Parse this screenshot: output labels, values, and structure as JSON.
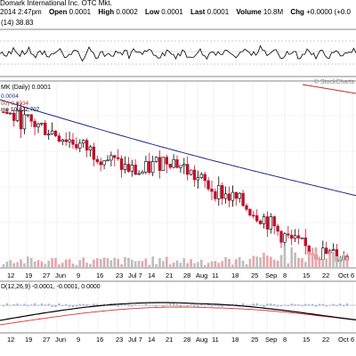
{
  "header": {
    "title": "Domark International Inc.  OTC Mkt.",
    "datetime": "2014 2:47pm",
    "open_label": "Open",
    "open_value": "0.0001",
    "high_label": "High",
    "high_value": "0.0002",
    "low_label": "Low",
    "low_value": "0.0001",
    "last_label": "Last",
    "last_value": "0.0001",
    "volume_label": "Volume",
    "volume_value": "10.8M",
    "chg_label": "Chg",
    "chg_value": "+0.0000 (+0.0"
  },
  "rsi_panel": {
    "label": "(14) 38.83"
  },
  "price_panel": {
    "label": "MK (Daily) 0.0001",
    "ma_label": "0.0004",
    "ema_label": "00) 0.0034",
    "volume_label": "me 10,822,707",
    "watermark": "© StockCharts"
  },
  "macd_panel": {
    "label": "D(12,26,9) -0.0001, -0.0001, 0.0000"
  },
  "x_axis_labels": [
    "12",
    "19",
    "27",
    "Jun",
    "9",
    "16",
    "23",
    "Jul 7",
    "14",
    "21",
    "28",
    "Aug",
    "11",
    "18",
    "25",
    "Sep",
    "8",
    "15",
    "22",
    "Oct",
    "6"
  ],
  "chart_data": {
    "type": "candlestick",
    "title": "Domark International Inc.  OTC Mkt.",
    "symbol_label": "MK (Daily) 0.0001",
    "x_tick_labels": [
      "12",
      "19",
      "27",
      "Jun",
      "9",
      "16",
      "23",
      "Jul 7",
      "14",
      "21",
      "28",
      "Aug",
      "11",
      "18",
      "25",
      "Sep",
      "8",
      "15",
      "22",
      "Oct",
      "6"
    ],
    "price_values_approx": [
      0.0065,
      0.0062,
      0.006,
      0.0058,
      0.0055,
      0.0052,
      0.0049,
      0.0046,
      0.0043,
      0.004,
      0.0038,
      0.0042,
      0.0045,
      0.0041,
      0.0036,
      0.0032,
      0.0029,
      0.0026,
      0.0022,
      0.0018,
      0.0012,
      0.0008,
      0.0005,
      0.0003,
      0.0002,
      0.0001
    ],
    "overlays": [
      {
        "name": "MA",
        "value": "0.0004",
        "color": "#1b2a8c"
      },
      {
        "name": "EMA",
        "value": "0.0034",
        "color": "#c0302a"
      }
    ],
    "volume": "10,822,707",
    "rsi": {
      "period": 14,
      "value": 38.83
    },
    "macd": {
      "params": "12,26,9",
      "macd": -0.0001,
      "signal": -0.0001,
      "histogram": 0.0
    },
    "colors": {
      "up": "#000000",
      "down": "#c0102a",
      "volume_up": "#bdbdbd",
      "volume_down": "#e8a4a8",
      "ma": "#1b2a8c",
      "ema": "#c0302a"
    }
  }
}
